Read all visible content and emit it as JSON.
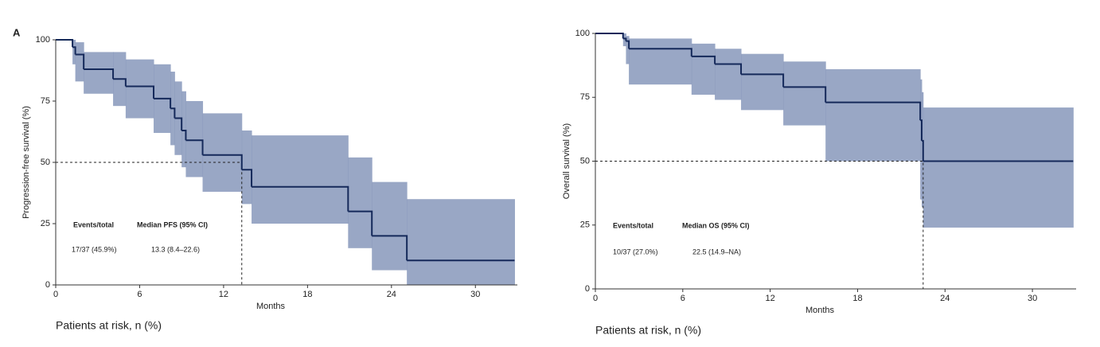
{
  "chart_data": [
    {
      "type": "line",
      "step": true,
      "panel_label": "A",
      "ylabel": "Progression-free survival (%)",
      "xlabel": "Months",
      "footer": "Patients at risk, n (%)",
      "x": [
        0,
        1.2,
        1.4,
        2,
        4.1,
        5,
        7,
        8.2,
        8.5,
        9,
        9.3,
        10.5,
        13.3,
        14,
        20.9,
        22.6,
        25.1,
        32.8
      ],
      "values": [
        100,
        97,
        94,
        88,
        84,
        81,
        76,
        72,
        68,
        63,
        59,
        53,
        47,
        40,
        30,
        20,
        10,
        10
      ],
      "ci_upper": [
        100,
        100,
        99,
        95,
        95,
        92,
        90,
        87,
        83,
        79,
        75,
        70,
        63,
        61,
        52,
        42,
        35,
        35
      ],
      "ci_lower": [
        100,
        90,
        83,
        78,
        73,
        68,
        62,
        57,
        53,
        48,
        44,
        38,
        33,
        25,
        15,
        6,
        0,
        0
      ],
      "color": "#15295a",
      "ci_color": "#8798bb",
      "median_x": 13.3,
      "median_y": 50,
      "xlim": [
        0,
        33
      ],
      "xticks": [
        0,
        6,
        12,
        18,
        24,
        30
      ],
      "ylim": [
        0,
        100
      ],
      "yticks": [
        0,
        25,
        50,
        75,
        100
      ],
      "table": {
        "header": [
          "Events/total",
          "Median PFS (95% CI)"
        ],
        "row": [
          "17/37 (45.9%)",
          "13.3 (8.4–22.6)"
        ]
      }
    },
    {
      "type": "line",
      "step": true,
      "ylabel": "Overall survival (%)",
      "xlabel": "Months",
      "footer": "Patients at risk, n (%)",
      "x": [
        0,
        1.9,
        2.1,
        2.3,
        6.6,
        8.2,
        10,
        12.9,
        15.8,
        22.3,
        22.4,
        22.5,
        32.8
      ],
      "values": [
        100,
        98,
        97,
        94,
        91,
        88,
        84,
        79,
        73,
        66,
        58,
        50,
        50
      ],
      "ci_upper": [
        100,
        100,
        99,
        98,
        96,
        94,
        92,
        89,
        86,
        82,
        77,
        71,
        71
      ],
      "ci_lower": [
        100,
        95,
        88,
        80,
        76,
        74,
        70,
        64,
        50,
        35,
        32,
        24,
        24
      ],
      "color": "#15295a",
      "ci_color": "#8798bb",
      "median_x": 22.5,
      "median_y": 50,
      "xlim": [
        0,
        33
      ],
      "xticks": [
        0,
        6,
        12,
        18,
        24,
        30
      ],
      "ylim": [
        0,
        100
      ],
      "yticks": [
        0,
        25,
        50,
        75,
        100
      ],
      "table": {
        "header": [
          "Events/total",
          "Median OS (95% CI)"
        ],
        "row": [
          "10/37 (27.0%)",
          "22.5 (14.9–NA)"
        ]
      }
    }
  ]
}
